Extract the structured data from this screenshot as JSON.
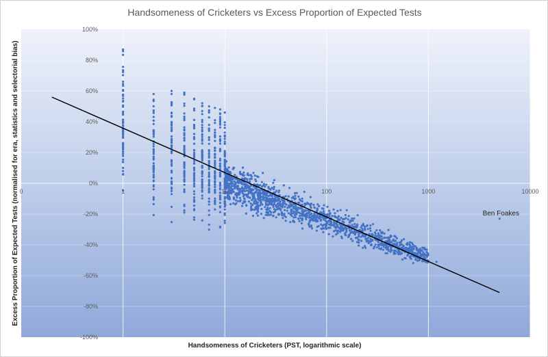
{
  "chart_data": {
    "type": "scatter",
    "title": "Handsomeness of Cricketers vs Excess Proportion of Expected Tests",
    "xlabel": "Handsomeness of Cricketers (PST, logarithmic scale)",
    "ylabel": "Excess Proportion of Expected Tests (normalised for era, statistics and selectorial bias)",
    "x_scale": "log",
    "xlim": [
      0.1,
      10000
    ],
    "ylim": [
      -100,
      100
    ],
    "x_tick_labels": [
      "0",
      "1",
      "10",
      "100",
      "1000",
      "10000"
    ],
    "y_tick_labels": [
      "100%",
      "80%",
      "60%",
      "40%",
      "20%",
      "0%",
      "-20%",
      "-40%",
      "-60%",
      "-80%",
      "-100%"
    ],
    "grid": true,
    "legend": "none",
    "colors": {
      "points": "#4472c4",
      "trendline": "#000000",
      "background_top": "#eef2fa",
      "background_bottom": "#8fa9da"
    },
    "trendline": {
      "x": [
        0.2,
        5000
      ],
      "y": [
        56,
        -71
      ]
    },
    "columns": [
      {
        "x": 1,
        "y_max": 87,
        "y_min": 10
      },
      {
        "x": 2,
        "y_max": 58,
        "y_min": -2
      },
      {
        "x": 3,
        "y_max": 60,
        "y_min": -7
      },
      {
        "x": 4,
        "y_max": 59,
        "y_min": -4
      },
      {
        "x": 5,
        "y_max": 55,
        "y_min": -7
      },
      {
        "x": 6,
        "y_max": 52,
        "y_min": -8
      },
      {
        "x": 7,
        "y_max": 50,
        "y_min": -10
      },
      {
        "x": 8,
        "y_max": 49,
        "y_min": -12
      },
      {
        "x": 9,
        "y_max": 48,
        "y_min": -15
      },
      {
        "x": 10,
        "y_max": 46,
        "y_min": -17
      }
    ],
    "cloud": {
      "x_range": [
        10,
        1000
      ],
      "center_line": {
        "x": [
          10,
          1000
        ],
        "y": [
          0,
          -48
        ]
      },
      "spread": 26
    },
    "annotated_points": [
      {
        "label": "Ben Foakes",
        "x": 5000,
        "y": -23
      },
      {
        "label": "",
        "x": 1200,
        "y": -51
      }
    ]
  }
}
